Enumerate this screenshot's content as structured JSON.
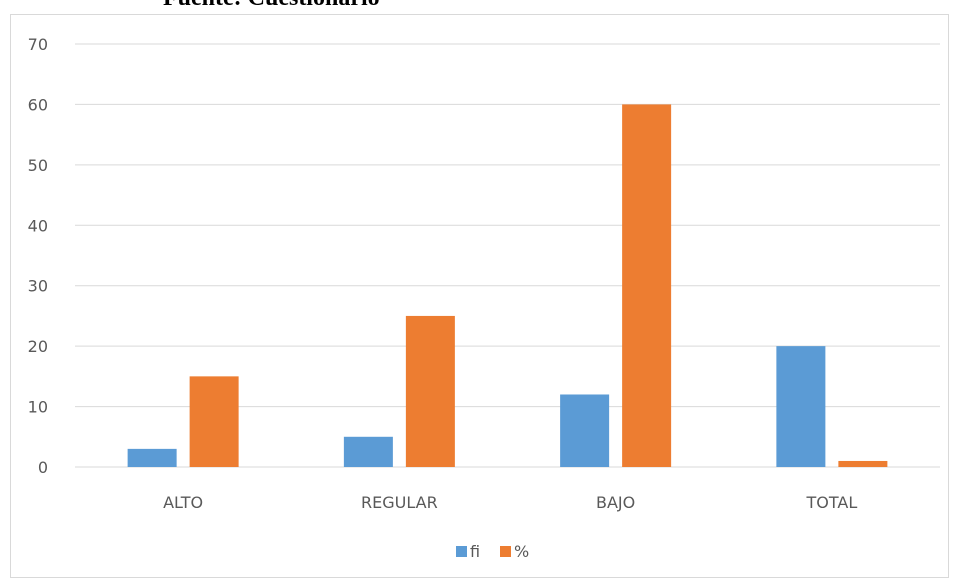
{
  "heading": "Fuente: Cuestionario",
  "chart_data": {
    "type": "bar",
    "categories": [
      "ALTO",
      "REGULAR",
      "BAJO",
      "TOTAL"
    ],
    "series": [
      {
        "name": "fi",
        "values": [
          3,
          5,
          12,
          20
        ],
        "color": "#5b9bd5"
      },
      {
        "name": "%",
        "values": [
          15,
          25,
          60,
          1
        ],
        "color": "#ed7d31"
      }
    ],
    "ylim": [
      0,
      70
    ],
    "yticks": [
      0,
      10,
      20,
      30,
      40,
      50,
      60,
      70
    ],
    "grid": true,
    "legend": "bottom"
  }
}
